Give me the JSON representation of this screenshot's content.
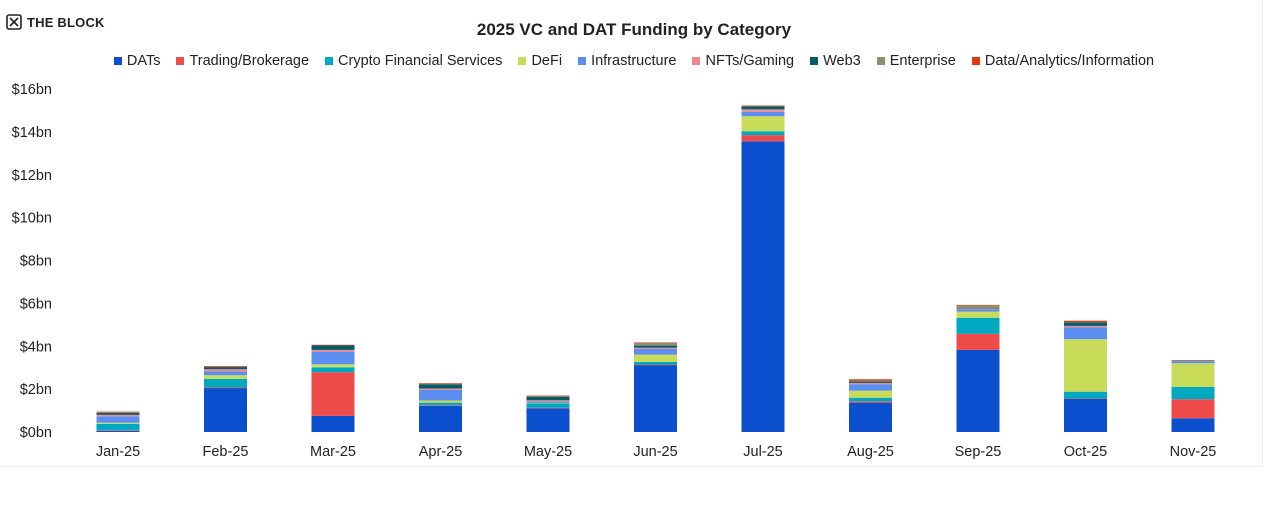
{
  "brand": {
    "name": "THE BLOCK"
  },
  "chart_data": {
    "type": "bar",
    "stacked": true,
    "title": "2025 VC and DAT Funding by Category",
    "xlabel": "",
    "ylabel": "",
    "ylim": [
      0,
      16
    ],
    "yticks": [
      0,
      2,
      4,
      6,
      8,
      10,
      12,
      14,
      16
    ],
    "ytick_labels": [
      "$0bn",
      "$2bn",
      "$4bn",
      "$6bn",
      "$8bn",
      "$10bn",
      "$12bn",
      "$14bn",
      "$16bn"
    ],
    "grid": false,
    "legend_position": "top",
    "categories": [
      "Jan-25",
      "Feb-25",
      "Mar-25",
      "Apr-25",
      "May-25",
      "Jun-25",
      "Jul-25",
      "Aug-25",
      "Sep-25",
      "Oct-25",
      "Nov-25"
    ],
    "series": [
      {
        "name": "DATs",
        "color": "#0b4fcf",
        "values": [
          0.05,
          2.05,
          0.75,
          1.22,
          1.1,
          3.12,
          13.56,
          1.37,
          3.83,
          1.54,
          0.64
        ]
      },
      {
        "name": "Trading/Brokerage",
        "color": "#f04b4b",
        "values": [
          0.03,
          0.03,
          2.04,
          0.03,
          0.03,
          0.03,
          0.29,
          0.06,
          0.75,
          0.02,
          0.89
        ]
      },
      {
        "name": "Crypto Financial Services",
        "color": "#00a8c0",
        "values": [
          0.3,
          0.4,
          0.23,
          0.12,
          0.2,
          0.12,
          0.18,
          0.17,
          0.75,
          0.32,
          0.57
        ]
      },
      {
        "name": "DeFi",
        "color": "#c8dc5a",
        "values": [
          0.05,
          0.17,
          0.14,
          0.1,
          0.03,
          0.34,
          0.7,
          0.33,
          0.29,
          2.45,
          1.11
        ]
      },
      {
        "name": "Infrastructure",
        "color": "#5b8ef0",
        "values": [
          0.3,
          0.18,
          0.59,
          0.5,
          0.07,
          0.27,
          0.21,
          0.3,
          0.11,
          0.56,
          0.08
        ]
      },
      {
        "name": "NFTs/Gaming",
        "color": "#f08a8a",
        "values": [
          0.07,
          0.1,
          0.08,
          0.06,
          0.05,
          0.05,
          0.11,
          0.06,
          0.03,
          0.06,
          0.02
        ]
      },
      {
        "name": "Web3",
        "color": "#0a5a66",
        "values": [
          0.1,
          0.1,
          0.22,
          0.2,
          0.17,
          0.1,
          0.14,
          0.07,
          0.02,
          0.16,
          0.03
        ]
      },
      {
        "name": "Enterprise",
        "color": "#8a9070",
        "values": [
          0.02,
          0.02,
          0.0,
          0.02,
          0.02,
          0.13,
          0.02,
          0.04,
          0.13,
          0.02,
          0.01
        ]
      },
      {
        "name": "Data/Analytics/Information",
        "color": "#e03a10",
        "values": [
          0.03,
          0.03,
          0.02,
          0.03,
          0.03,
          0.02,
          0.02,
          0.06,
          0.02,
          0.06,
          0.0
        ]
      }
    ]
  }
}
